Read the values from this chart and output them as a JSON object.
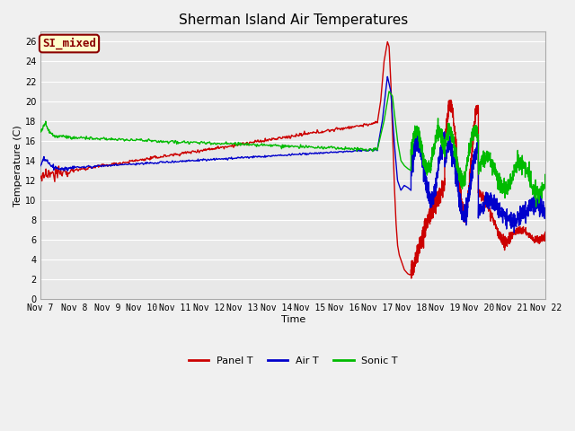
{
  "title": "Sherman Island Air Temperatures",
  "xlabel": "Time",
  "ylabel": "Temperature (C)",
  "ylim": [
    0,
    27
  ],
  "yticks": [
    0,
    2,
    4,
    6,
    8,
    10,
    12,
    14,
    16,
    18,
    20,
    22,
    24,
    26
  ],
  "plot_bg": "#e8e8e8",
  "fig_bg": "#f0f0f0",
  "grid_color": "#ffffff",
  "annotation_text": "SI_mixed",
  "annotation_bg": "#ffffcc",
  "annotation_border": "#8b0000",
  "annotation_text_color": "#8b0000",
  "panel_t_color": "#cc0000",
  "air_t_color": "#0000cc",
  "sonic_t_color": "#00bb00",
  "line_width": 1.0,
  "title_fontsize": 11,
  "tick_fontsize": 7,
  "label_fontsize": 8,
  "legend_fontsize": 8
}
